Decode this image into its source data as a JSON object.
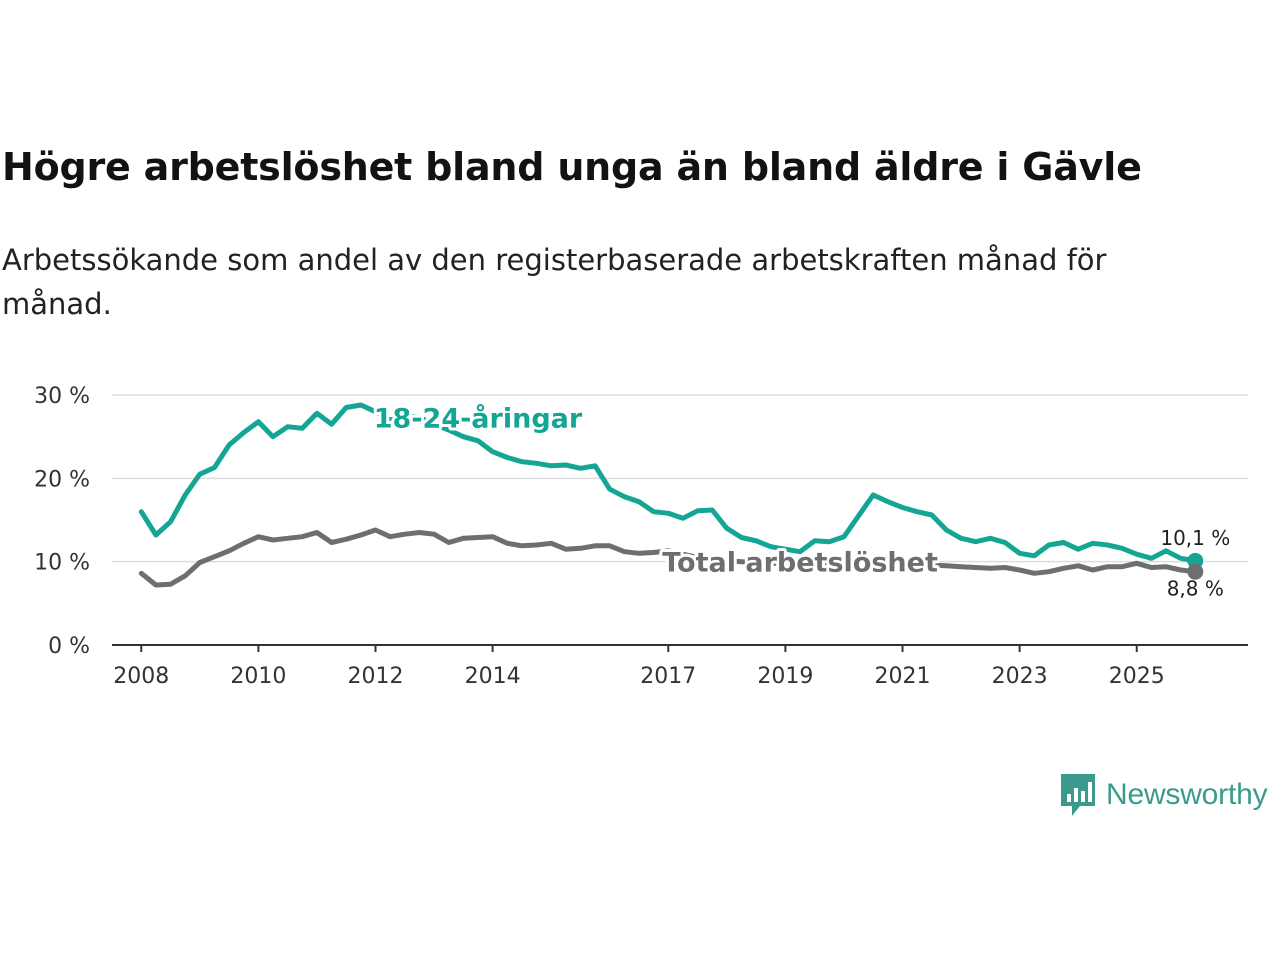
{
  "title": "Högre arbetslöshet bland unga än bland äldre i Gävle",
  "subtitle": "Arbetssökande som andel av den registerbaserade arbetskraften månad för månad.",
  "brand": {
    "name": "Newsworthy",
    "color": "#3a9b8c"
  },
  "chart_data": {
    "type": "line",
    "title": "Högre arbetslöshet bland unga än bland äldre i Gävle",
    "xlabel": "",
    "ylabel": "",
    "ylim": [
      0,
      30
    ],
    "xlim": [
      2007.5,
      2026.9
    ],
    "y_ticks": [
      0,
      10,
      20,
      30
    ],
    "y_tick_labels": [
      "0 %",
      "10 %",
      "20 %",
      "30 %"
    ],
    "x_ticks": [
      2008,
      2010,
      2012,
      2014,
      2017,
      2019,
      2021,
      2023,
      2025
    ],
    "x_tick_labels": [
      "2008",
      "2010",
      "2012",
      "2014",
      "2017",
      "2019",
      "2021",
      "2023",
      "2025"
    ],
    "grid": true,
    "series": [
      {
        "name": "18-24-åringar",
        "color": "#14a594",
        "end_label": "10,1 %",
        "x": [
          2008.0,
          2008.25,
          2008.5,
          2008.75,
          2009.0,
          2009.25,
          2009.5,
          2009.75,
          2010.0,
          2010.25,
          2010.5,
          2010.75,
          2011.0,
          2011.25,
          2011.5,
          2011.75,
          2012.0,
          2012.25,
          2012.5,
          2012.75,
          2013.0,
          2013.25,
          2013.5,
          2013.75,
          2014.0,
          2014.25,
          2014.5,
          2014.75,
          2015.0,
          2015.25,
          2015.5,
          2015.75,
          2016.0,
          2016.25,
          2016.5,
          2016.75,
          2017.0,
          2017.25,
          2017.5,
          2017.75,
          2018.0,
          2018.25,
          2018.5,
          2018.75,
          2019.0,
          2019.25,
          2019.5,
          2019.75,
          2020.0,
          2020.25,
          2020.5,
          2020.75,
          2021.0,
          2021.25,
          2021.5,
          2021.75,
          2022.0,
          2022.25,
          2022.5,
          2022.75,
          2023.0,
          2023.25,
          2023.5,
          2023.75,
          2024.0,
          2024.25,
          2024.5,
          2024.75,
          2025.0,
          2025.25,
          2025.5,
          2025.75,
          2026.0
        ],
        "y": [
          16.0,
          13.2,
          14.8,
          18.0,
          20.5,
          21.3,
          24.0,
          25.5,
          26.8,
          25.0,
          26.2,
          26.0,
          27.8,
          26.5,
          28.5,
          28.8,
          28.0,
          27.0,
          27.5,
          27.3,
          26.5,
          25.8,
          25.0,
          24.5,
          23.2,
          22.5,
          22.0,
          21.8,
          21.5,
          21.6,
          21.2,
          21.5,
          18.7,
          17.8,
          17.2,
          16.0,
          15.8,
          15.2,
          16.1,
          16.2,
          14.0,
          12.9,
          12.5,
          11.8,
          11.5,
          11.2,
          12.5,
          12.4,
          13.0,
          15.5,
          18.0,
          17.2,
          16.5,
          16.0,
          15.6,
          13.8,
          12.8,
          12.4,
          12.8,
          12.3,
          11.0,
          10.7,
          12.0,
          12.3,
          11.5,
          12.2,
          12.0,
          11.6,
          10.9,
          10.4,
          11.3,
          10.4,
          10.1
        ]
      },
      {
        "name": "Total arbetslöshet",
        "color": "#6d6e71",
        "end_label": "8,8 %",
        "x": [
          2008.0,
          2008.25,
          2008.5,
          2008.75,
          2009.0,
          2009.25,
          2009.5,
          2009.75,
          2010.0,
          2010.25,
          2010.5,
          2010.75,
          2011.0,
          2011.25,
          2011.5,
          2011.75,
          2012.0,
          2012.25,
          2012.5,
          2012.75,
          2013.0,
          2013.25,
          2013.5,
          2013.75,
          2014.0,
          2014.25,
          2014.5,
          2014.75,
          2015.0,
          2015.25,
          2015.5,
          2015.75,
          2016.0,
          2016.25,
          2016.5,
          2016.75,
          2017.0,
          2017.25,
          2017.5,
          2017.75,
          2018.0,
          2018.25,
          2018.5,
          2018.75,
          2019.0,
          2019.25,
          2019.5,
          2019.75,
          2020.0,
          2020.25,
          2020.5,
          2020.75,
          2021.0,
          2021.25,
          2021.5,
          2021.75,
          2022.0,
          2022.25,
          2022.5,
          2022.75,
          2023.0,
          2023.25,
          2023.5,
          2023.75,
          2024.0,
          2024.25,
          2024.5,
          2024.75,
          2025.0,
          2025.25,
          2025.5,
          2025.75,
          2026.0
        ],
        "y": [
          8.6,
          7.2,
          7.3,
          8.3,
          9.9,
          10.6,
          11.3,
          12.2,
          13.0,
          12.6,
          12.8,
          13.0,
          13.5,
          12.3,
          12.7,
          13.2,
          13.8,
          13.0,
          13.3,
          13.5,
          13.3,
          12.3,
          12.8,
          12.9,
          13.0,
          12.2,
          11.9,
          12.0,
          12.2,
          11.5,
          11.6,
          11.9,
          11.9,
          11.2,
          11.0,
          11.1,
          11.3,
          10.9,
          10.5,
          10.2,
          10.1,
          10.0,
          9.9,
          9.8,
          9.8,
          9.7,
          9.9,
          9.9,
          10.0,
          10.2,
          10.0,
          9.8,
          9.7,
          9.6,
          9.6,
          9.5,
          9.4,
          9.3,
          9.2,
          9.3,
          9.0,
          8.6,
          8.8,
          9.2,
          9.5,
          9.0,
          9.4,
          9.4,
          9.8,
          9.3,
          9.4,
          9.0,
          8.8
        ]
      }
    ],
    "annotations": [
      {
        "text": "18-24-åringar",
        "series": 0,
        "x": 2013.75,
        "y": 27.3
      },
      {
        "text": "Total arbetslöshet",
        "series": 1,
        "x": 2019.25,
        "y": 10.0
      }
    ]
  }
}
